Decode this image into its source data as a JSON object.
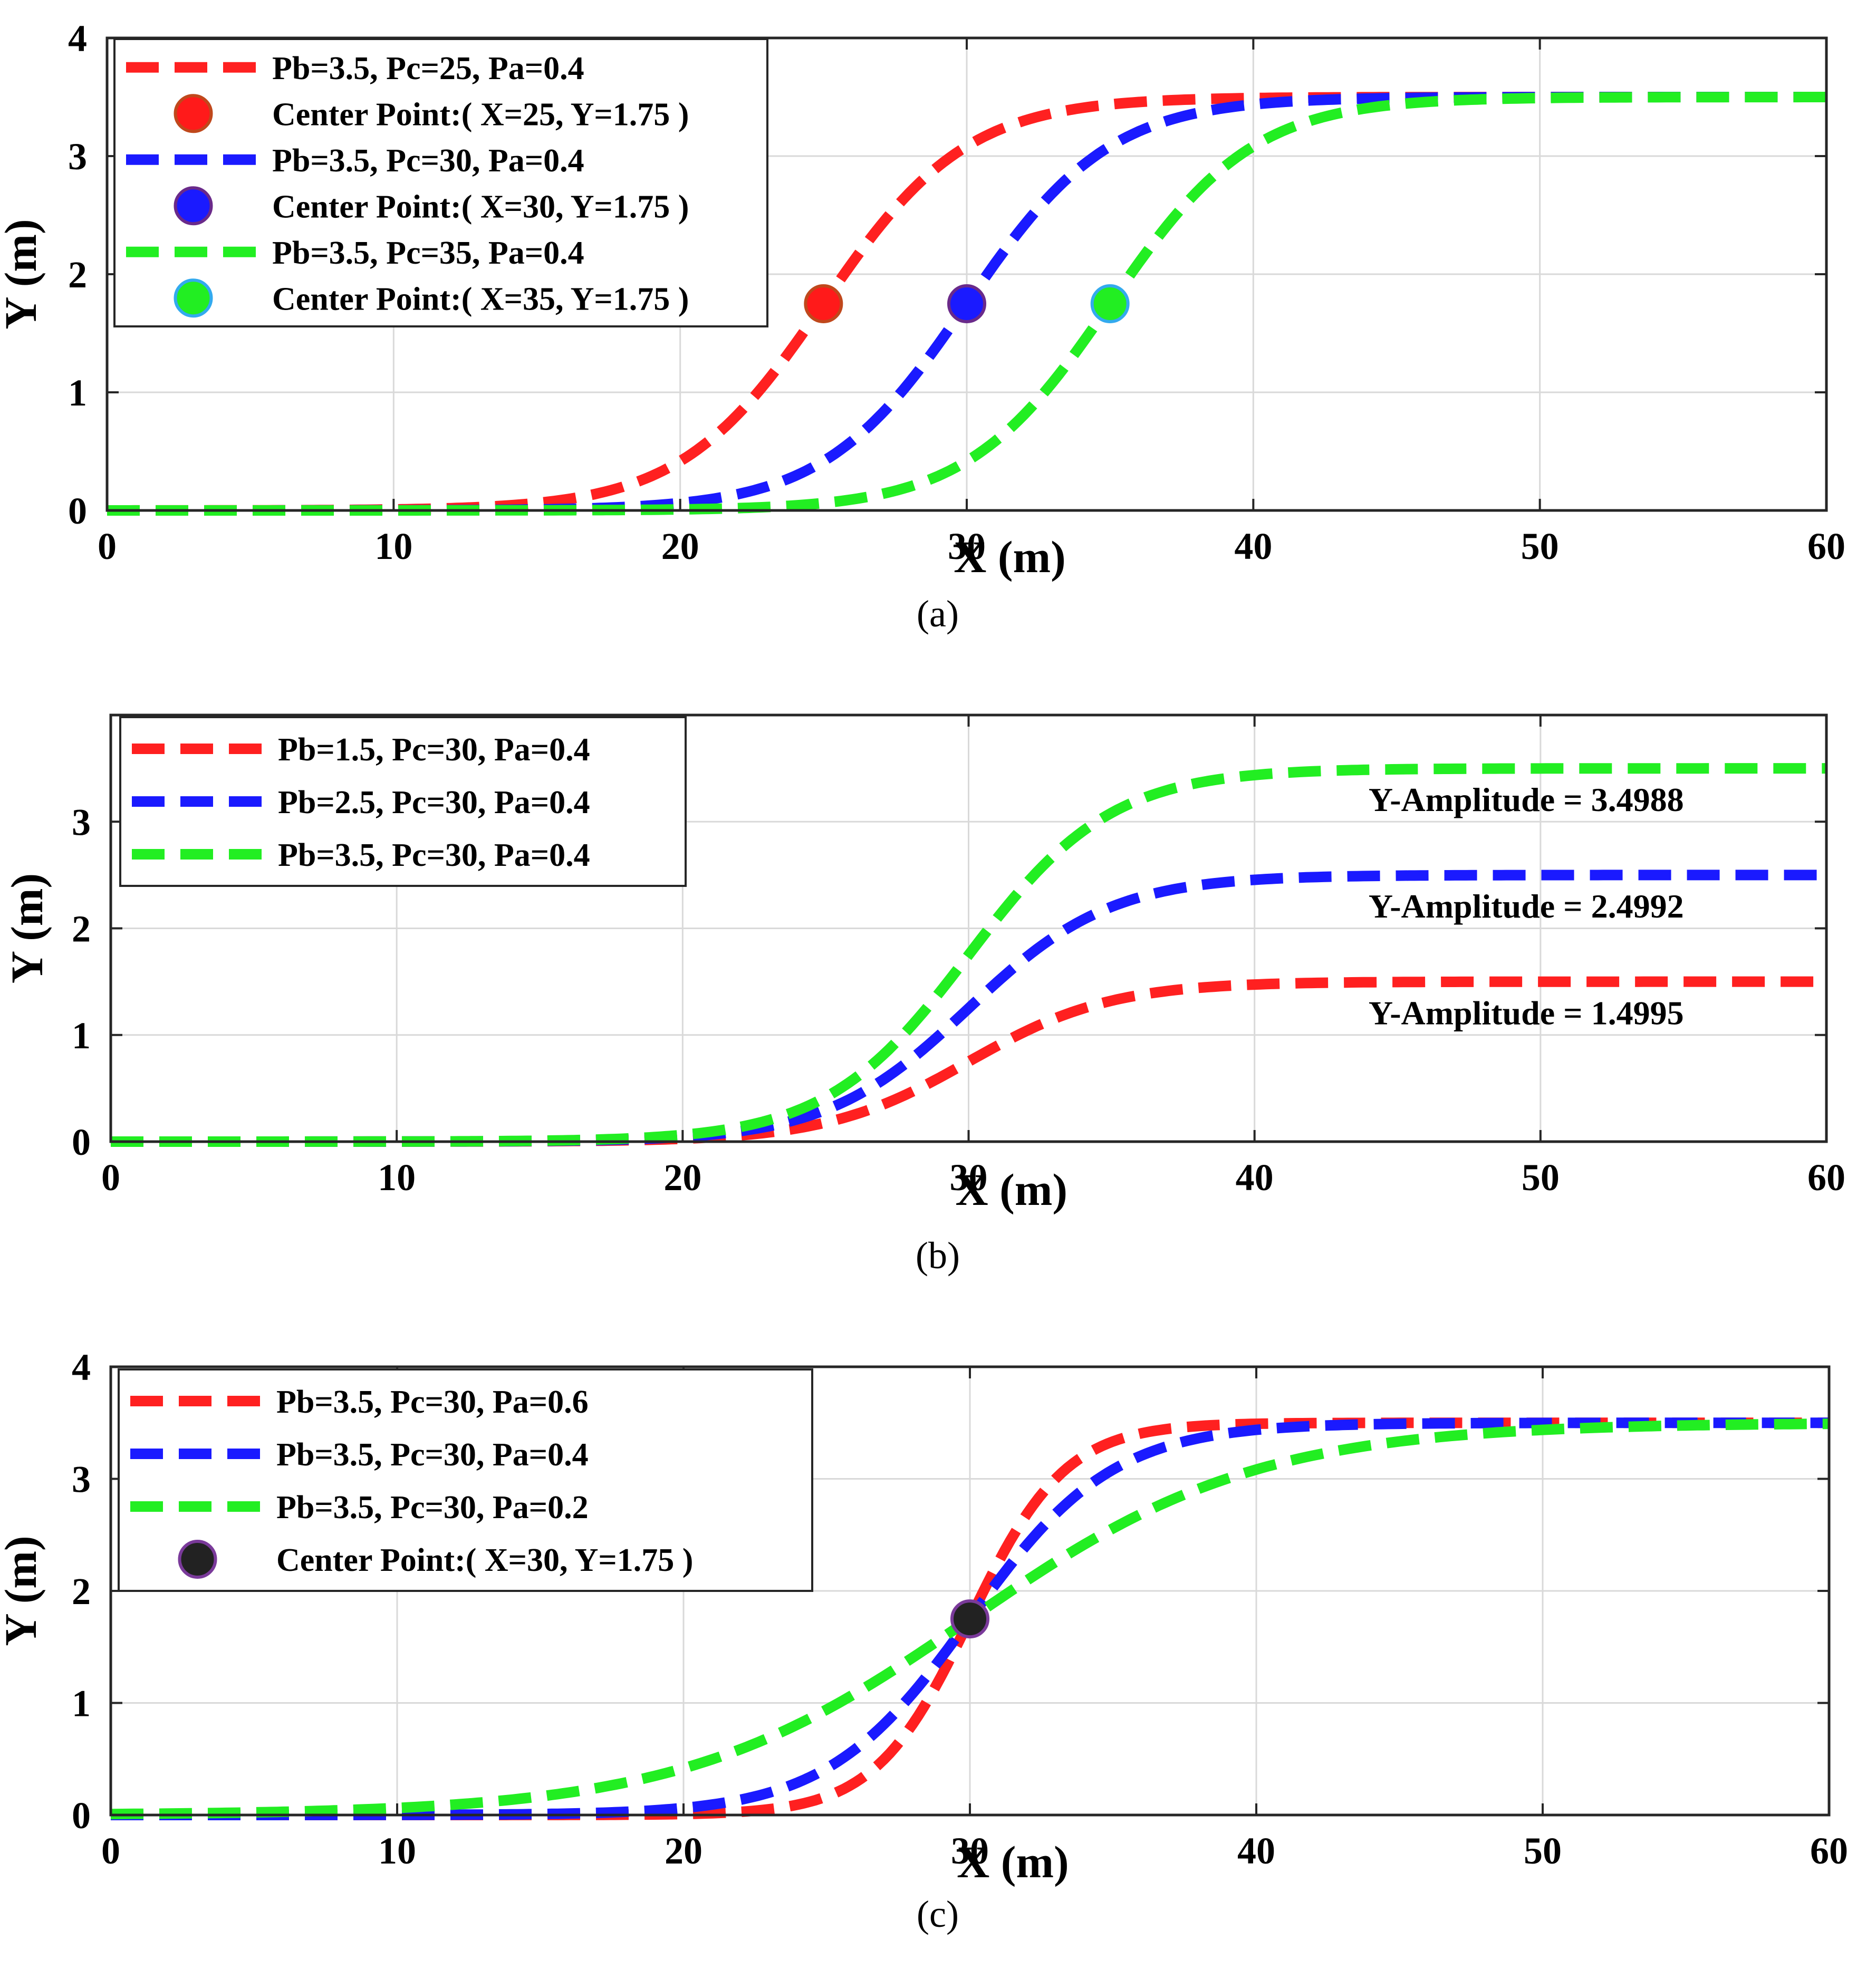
{
  "chart_data": [
    {
      "id": "a",
      "type": "line",
      "caption": "(a)",
      "xlabel": "X (m)",
      "ylabel": "Y (m)",
      "xlim": [
        0,
        60
      ],
      "ylim": [
        0,
        4
      ],
      "xticks": [
        "0",
        "10",
        "20",
        "30",
        "40",
        "50",
        "60"
      ],
      "yticks": [
        "0",
        "1",
        "2",
        "3",
        "4"
      ],
      "grid": true,
      "legend_position": "top-left",
      "series": [
        {
          "name": "Pb=3.5, Pc=25, Pa=0.4",
          "Pb": 3.5,
          "Pc": 25,
          "Pa": 0.4,
          "color": "#ff2020",
          "style": "dashed"
        },
        {
          "name": "Center Point:( X=25, Y=1.75 )",
          "marker": true,
          "x": 25,
          "y": 1.75,
          "color": "#ff1a1a",
          "edge": "#c0481c"
        },
        {
          "name": "Pb=3.5, Pc=30, Pa=0.4",
          "Pb": 3.5,
          "Pc": 30,
          "Pa": 0.4,
          "color": "#1a1aff",
          "style": "dashed"
        },
        {
          "name": "Center Point:( X=30, Y=1.75 )",
          "marker": true,
          "x": 30,
          "y": 1.75,
          "color": "#1a1aff",
          "edge": "#6a2a8a"
        },
        {
          "name": "Pb=3.5, Pc=35, Pa=0.4",
          "Pb": 3.5,
          "Pc": 35,
          "Pa": 0.4,
          "color": "#22ee22",
          "style": "dashed"
        },
        {
          "name": "Center Point:( X=35, Y=1.75 )",
          "marker": true,
          "x": 35,
          "y": 1.75,
          "color": "#22ee22",
          "edge": "#33aaee"
        }
      ],
      "annotations": []
    },
    {
      "id": "b",
      "type": "line",
      "caption": "(b)",
      "xlabel": "X (m)",
      "ylabel": "Y (m)",
      "xlim": [
        0,
        60
      ],
      "ylim": [
        0,
        4
      ],
      "xticks": [
        "0",
        "10",
        "20",
        "30",
        "40",
        "50",
        "60"
      ],
      "yticks": [
        "0",
        "1",
        "2",
        "3"
      ],
      "grid": true,
      "legend_position": "top-left",
      "series": [
        {
          "name": "Pb=1.5, Pc=30, Pa=0.4",
          "Pb": 1.5,
          "Pc": 30,
          "Pa": 0.4,
          "color": "#ff2020",
          "style": "dashed"
        },
        {
          "name": "Pb=2.5, Pc=30, Pa=0.4",
          "Pb": 2.5,
          "Pc": 30,
          "Pa": 0.4,
          "color": "#1a1aff",
          "style": "dashed"
        },
        {
          "name": "Pb=3.5, Pc=30, Pa=0.4",
          "Pb": 3.5,
          "Pc": 30,
          "Pa": 0.4,
          "color": "#22ee22",
          "style": "dashed"
        }
      ],
      "annotations": [
        {
          "text": "Y-Amplitude = 3.4988",
          "x": 49.5,
          "y": 3.2
        },
        {
          "text": "Y-Amplitude = 2.4992",
          "x": 49.5,
          "y": 2.2
        },
        {
          "text": "Y-Amplitude = 1.4995",
          "x": 49.5,
          "y": 1.2
        }
      ]
    },
    {
      "id": "c",
      "type": "line",
      "caption": "(c)",
      "xlabel": "X (m)",
      "ylabel": "Y (m)",
      "xlim": [
        0,
        60
      ],
      "ylim": [
        0,
        4
      ],
      "xticks": [
        "0",
        "10",
        "20",
        "30",
        "40",
        "50",
        "60"
      ],
      "yticks": [
        "0",
        "1",
        "2",
        "3",
        "4"
      ],
      "grid": true,
      "legend_position": "top-left",
      "series": [
        {
          "name": "Pb=3.5, Pc=30, Pa=0.6",
          "Pb": 3.5,
          "Pc": 30,
          "Pa": 0.6,
          "color": "#ff2020",
          "style": "dashed"
        },
        {
          "name": "Pb=3.5, Pc=30, Pa=0.4",
          "Pb": 3.5,
          "Pc": 30,
          "Pa": 0.4,
          "color": "#1a1aff",
          "style": "dashed"
        },
        {
          "name": "Pb=3.5, Pc=30, Pa=0.2",
          "Pb": 3.5,
          "Pc": 30,
          "Pa": 0.2,
          "color": "#22ee22",
          "style": "dashed"
        },
        {
          "name": "Center Point:( X=30, Y=1.75 )",
          "marker": true,
          "x": 30,
          "y": 1.75,
          "color": "#222222",
          "edge": "#7a3a9a"
        }
      ],
      "annotations": []
    }
  ]
}
